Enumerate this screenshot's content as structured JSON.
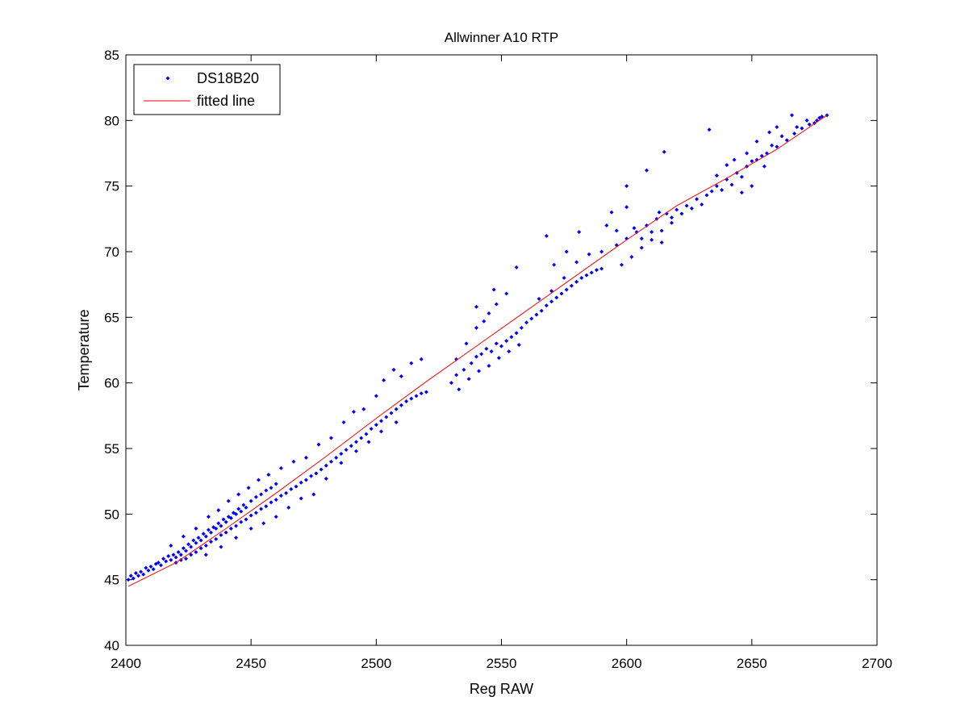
{
  "chart_data": {
    "type": "scatter",
    "title": "Allwinner A10 RTP",
    "xlabel": "Reg RAW",
    "ylabel": "Temperature",
    "xlim": [
      2400,
      2700
    ],
    "ylim": [
      40,
      85
    ],
    "xticks": [
      2400,
      2450,
      2500,
      2550,
      2600,
      2650,
      2700
    ],
    "yticks": [
      40,
      45,
      50,
      55,
      60,
      65,
      70,
      75,
      80,
      85
    ],
    "grid": false,
    "legend_position": "top-left",
    "series": [
      {
        "name": "DS18B20",
        "kind": "points",
        "color": "#0000ff",
        "points": [
          [
            2401,
            45.0
          ],
          [
            2402,
            45.3
          ],
          [
            2403,
            45.1
          ],
          [
            2404,
            45.5
          ],
          [
            2405,
            45.3
          ],
          [
            2406,
            45.6
          ],
          [
            2407,
            45.4
          ],
          [
            2408,
            45.9
          ],
          [
            2409,
            45.7
          ],
          [
            2410,
            46.0
          ],
          [
            2411,
            45.8
          ],
          [
            2412,
            46.2
          ],
          [
            2413,
            46.3
          ],
          [
            2414,
            46.1
          ],
          [
            2415,
            46.6
          ],
          [
            2416,
            46.4
          ],
          [
            2417,
            46.8
          ],
          [
            2418,
            46.5
          ],
          [
            2419,
            46.9
          ],
          [
            2420,
            46.7
          ],
          [
            2421,
            47.1
          ],
          [
            2422,
            46.9
          ],
          [
            2423,
            47.4
          ],
          [
            2424,
            47.2
          ],
          [
            2425,
            47.7
          ],
          [
            2426,
            47.5
          ],
          [
            2427,
            48.0
          ],
          [
            2428,
            47.8
          ],
          [
            2429,
            48.2
          ],
          [
            2430,
            48.0
          ],
          [
            2431,
            48.5
          ],
          [
            2432,
            48.3
          ],
          [
            2433,
            48.8
          ],
          [
            2434,
            48.6
          ],
          [
            2435,
            49.0
          ],
          [
            2436,
            48.9
          ],
          [
            2437,
            49.3
          ],
          [
            2438,
            49.1
          ],
          [
            2439,
            49.6
          ],
          [
            2440,
            49.4
          ],
          [
            2441,
            49.8
          ],
          [
            2442,
            49.7
          ],
          [
            2443,
            50.1
          ],
          [
            2444,
            50.0
          ],
          [
            2445,
            50.4
          ],
          [
            2446,
            50.2
          ],
          [
            2447,
            50.7
          ],
          [
            2448,
            50.5
          ],
          [
            2450,
            51.0
          ],
          [
            2452,
            51.3
          ],
          [
            2454,
            51.5
          ],
          [
            2456,
            51.8
          ],
          [
            2458,
            52.0
          ],
          [
            2460,
            52.3
          ],
          [
            2420,
            46.3
          ],
          [
            2422,
            46.5
          ],
          [
            2424,
            46.6
          ],
          [
            2426,
            46.9
          ],
          [
            2428,
            47.1
          ],
          [
            2430,
            47.4
          ],
          [
            2432,
            47.6
          ],
          [
            2434,
            47.9
          ],
          [
            2436,
            48.1
          ],
          [
            2438,
            48.4
          ],
          [
            2440,
            48.6
          ],
          [
            2442,
            48.9
          ],
          [
            2444,
            49.1
          ],
          [
            2446,
            49.4
          ],
          [
            2448,
            49.6
          ],
          [
            2450,
            49.9
          ],
          [
            2452,
            50.1
          ],
          [
            2454,
            50.4
          ],
          [
            2456,
            50.6
          ],
          [
            2458,
            50.9
          ],
          [
            2460,
            51.1
          ],
          [
            2462,
            51.4
          ],
          [
            2464,
            51.6
          ],
          [
            2466,
            51.9
          ],
          [
            2468,
            52.1
          ],
          [
            2470,
            52.4
          ],
          [
            2472,
            52.6
          ],
          [
            2474,
            52.9
          ],
          [
            2476,
            53.1
          ],
          [
            2478,
            53.4
          ],
          [
            2480,
            53.7
          ],
          [
            2482,
            54.0
          ],
          [
            2484,
            54.3
          ],
          [
            2486,
            54.6
          ],
          [
            2488,
            54.9
          ],
          [
            2490,
            55.2
          ],
          [
            2492,
            55.5
          ],
          [
            2494,
            55.8
          ],
          [
            2496,
            56.1
          ],
          [
            2498,
            56.5
          ],
          [
            2500,
            56.8
          ],
          [
            2502,
            57.1
          ],
          [
            2504,
            57.4
          ],
          [
            2506,
            57.7
          ],
          [
            2508,
            58.0
          ],
          [
            2510,
            58.3
          ],
          [
            2512,
            58.6
          ],
          [
            2514,
            58.8
          ],
          [
            2516,
            59.0
          ],
          [
            2518,
            59.2
          ],
          [
            2520,
            59.3
          ],
          [
            2418,
            47.6
          ],
          [
            2423,
            48.3
          ],
          [
            2428,
            48.9
          ],
          [
            2433,
            49.8
          ],
          [
            2437,
            50.3
          ],
          [
            2441,
            51.0
          ],
          [
            2445,
            51.5
          ],
          [
            2449,
            52.0
          ],
          [
            2453,
            52.6
          ],
          [
            2457,
            53.0
          ],
          [
            2462,
            53.5
          ],
          [
            2467,
            54.0
          ],
          [
            2472,
            54.3
          ],
          [
            2477,
            55.3
          ],
          [
            2482,
            55.8
          ],
          [
            2487,
            57.0
          ],
          [
            2491,
            57.8
          ],
          [
            2495,
            58.0
          ],
          [
            2500,
            59.0
          ],
          [
            2503,
            60.2
          ],
          [
            2507,
            61.0
          ],
          [
            2510,
            60.5
          ],
          [
            2514,
            61.5
          ],
          [
            2518,
            61.8
          ],
          [
            2432,
            46.9
          ],
          [
            2438,
            47.5
          ],
          [
            2444,
            48.2
          ],
          [
            2450,
            48.9
          ],
          [
            2455,
            49.3
          ],
          [
            2460,
            49.8
          ],
          [
            2465,
            50.5
          ],
          [
            2470,
            51.2
          ],
          [
            2475,
            51.5
          ],
          [
            2480,
            52.7
          ],
          [
            2486,
            53.9
          ],
          [
            2492,
            54.8
          ],
          [
            2497,
            55.5
          ],
          [
            2502,
            56.3
          ],
          [
            2508,
            57.0
          ],
          [
            2530,
            60.0
          ],
          [
            2532,
            60.6
          ],
          [
            2535,
            61.0
          ],
          [
            2538,
            61.5
          ],
          [
            2540,
            62.0
          ],
          [
            2542,
            62.2
          ],
          [
            2544,
            62.6
          ],
          [
            2546,
            62.4
          ],
          [
            2548,
            63.0
          ],
          [
            2550,
            62.8
          ],
          [
            2552,
            63.2
          ],
          [
            2554,
            63.5
          ],
          [
            2556,
            63.8
          ],
          [
            2558,
            64.2
          ],
          [
            2560,
            64.6
          ],
          [
            2562,
            64.9
          ],
          [
            2564,
            65.2
          ],
          [
            2566,
            65.5
          ],
          [
            2568,
            65.9
          ],
          [
            2570,
            66.2
          ],
          [
            2572,
            66.5
          ],
          [
            2574,
            66.8
          ],
          [
            2576,
            67.1
          ],
          [
            2578,
            67.4
          ],
          [
            2580,
            67.7
          ],
          [
            2582,
            68.0
          ],
          [
            2584,
            68.2
          ],
          [
            2586,
            68.4
          ],
          [
            2588,
            68.6
          ],
          [
            2590,
            68.7
          ],
          [
            2532,
            61.8
          ],
          [
            2536,
            63.0
          ],
          [
            2540,
            64.2
          ],
          [
            2545,
            65.3
          ],
          [
            2548,
            66.0
          ],
          [
            2552,
            66.8
          ],
          [
            2556,
            68.8
          ],
          [
            2533,
            59.5
          ],
          [
            2537,
            60.3
          ],
          [
            2541,
            60.9
          ],
          [
            2545,
            61.3
          ],
          [
            2549,
            61.9
          ],
          [
            2553,
            62.4
          ],
          [
            2557,
            62.9
          ],
          [
            2543,
            64.7
          ],
          [
            2547,
            67.1
          ],
          [
            2540,
            65.8
          ],
          [
            2565,
            66.4
          ],
          [
            2570,
            67.0
          ],
          [
            2575,
            68.0
          ],
          [
            2580,
            69.2
          ],
          [
            2585,
            69.8
          ],
          [
            2590,
            70.0
          ],
          [
            2596,
            70.5
          ],
          [
            2600,
            71.0
          ],
          [
            2604,
            71.5
          ],
          [
            2608,
            72.0
          ],
          [
            2612,
            72.5
          ],
          [
            2616,
            72.9
          ],
          [
            2620,
            73.2
          ],
          [
            2624,
            73.5
          ],
          [
            2628,
            74.0
          ],
          [
            2632,
            74.3
          ],
          [
            2634,
            74.6
          ],
          [
            2592,
            72.0
          ],
          [
            2596,
            71.6
          ],
          [
            2600,
            73.4
          ],
          [
            2603,
            71.8
          ],
          [
            2606,
            71.0
          ],
          [
            2610,
            71.5
          ],
          [
            2614,
            70.7
          ],
          [
            2613,
            73.0
          ],
          [
            2618,
            72.6
          ],
          [
            2622,
            72.9
          ],
          [
            2626,
            73.3
          ],
          [
            2630,
            73.6
          ],
          [
            2598,
            69.0
          ],
          [
            2602,
            69.6
          ],
          [
            2606,
            70.3
          ],
          [
            2610,
            70.9
          ],
          [
            2614,
            71.6
          ],
          [
            2618,
            72.2
          ],
          [
            2600,
            75.0
          ],
          [
            2608,
            76.2
          ],
          [
            2615,
            77.6
          ],
          [
            2633,
            79.3
          ],
          [
            2594,
            73.0
          ],
          [
            2581,
            71.5
          ],
          [
            2576,
            70.0
          ],
          [
            2571,
            69.0
          ],
          [
            2568,
            71.2
          ],
          [
            2636,
            75.0
          ],
          [
            2640,
            75.5
          ],
          [
            2644,
            76.0
          ],
          [
            2648,
            76.5
          ],
          [
            2652,
            77.0
          ],
          [
            2656,
            77.5
          ],
          [
            2660,
            78.0
          ],
          [
            2664,
            78.5
          ],
          [
            2667,
            79.0
          ],
          [
            2670,
            79.4
          ],
          [
            2673,
            79.7
          ],
          [
            2676,
            80.0
          ],
          [
            2678,
            80.3
          ],
          [
            2680,
            80.4
          ],
          [
            2666,
            80.4
          ],
          [
            2662,
            78.8
          ],
          [
            2658,
            78.1
          ],
          [
            2654,
            77.3
          ],
          [
            2650,
            76.9
          ],
          [
            2646,
            75.7
          ],
          [
            2642,
            75.1
          ],
          [
            2638,
            74.7
          ],
          [
            2668,
            79.5
          ],
          [
            2672,
            80.0
          ],
          [
            2675,
            79.8
          ],
          [
            2677,
            80.2
          ],
          [
            2660,
            79.5
          ],
          [
            2657,
            79.1
          ],
          [
            2652,
            78.4
          ],
          [
            2648,
            77.5
          ],
          [
            2643,
            77.0
          ],
          [
            2640,
            76.6
          ],
          [
            2636,
            75.8
          ],
          [
            2646,
            74.5
          ],
          [
            2650,
            75.0
          ],
          [
            2655,
            76.5
          ]
        ]
      },
      {
        "name": "fitted line",
        "kind": "line",
        "color": "#ff0000",
        "points": [
          [
            2401,
            44.5
          ],
          [
            2420,
            46.3
          ],
          [
            2440,
            48.9
          ],
          [
            2460,
            51.6
          ],
          [
            2480,
            54.4
          ],
          [
            2500,
            57.3
          ],
          [
            2520,
            60.1
          ],
          [
            2540,
            62.8
          ],
          [
            2560,
            65.5
          ],
          [
            2580,
            68.2
          ],
          [
            2600,
            70.9
          ],
          [
            2620,
            73.5
          ],
          [
            2640,
            75.6
          ],
          [
            2660,
            77.8
          ],
          [
            2680,
            80.4
          ]
        ]
      }
    ]
  }
}
